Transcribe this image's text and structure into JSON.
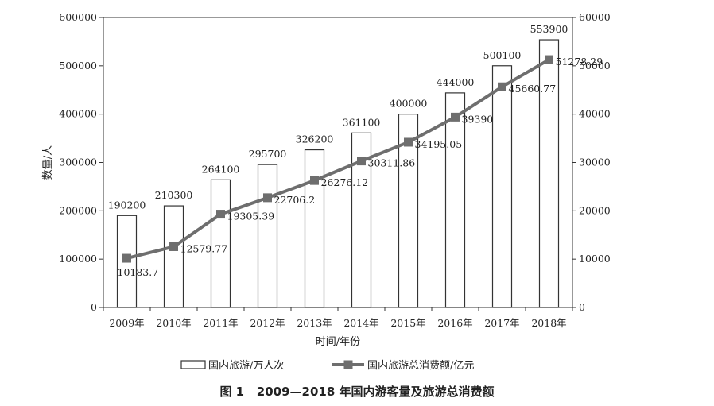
{
  "chart_data": {
    "type": "bar",
    "categories": [
      "2009年",
      "2010年",
      "2011年",
      "2012年",
      "2013年",
      "2014年",
      "2015年",
      "2016年",
      "2017年",
      "2018年"
    ],
    "series": [
      {
        "name": "国内旅游/万人次",
        "type": "bar",
        "axis": "left",
        "values": [
          190200,
          210300,
          264100,
          295700,
          326200,
          361100,
          400000,
          444000,
          500100,
          553900
        ],
        "labels": [
          "190200",
          "210300",
          "264100",
          "295700",
          "326200",
          "361100",
          "400000",
          "444000",
          "500100",
          "553900"
        ]
      },
      {
        "name": "国内旅游总消费额/亿元",
        "type": "line",
        "axis": "right",
        "values": [
          10183.7,
          12579.77,
          19305.39,
          22706.2,
          26276.12,
          30311.86,
          34195.05,
          39390,
          45660.77,
          51278.29
        ],
        "labels": [
          "10183.7",
          "12579.77",
          "19305.39",
          "22706.2",
          "26276.12",
          "30311.86",
          "34195.05",
          "39390",
          "45660.77",
          "51278.29"
        ],
        "color": "#6e6e6e"
      }
    ],
    "xlabel": "时间/年份",
    "ylabel": "数量/人",
    "ylim_left": [
      0,
      600000
    ],
    "ylim_right": [
      0,
      60000
    ],
    "left_ticks": [
      "0",
      "100000",
      "200000",
      "300000",
      "400000",
      "500000",
      "600000"
    ],
    "right_ticks": [
      "0",
      "10000",
      "20000",
      "30000",
      "40000",
      "50000",
      "60000"
    ],
    "grid": false,
    "legend_position": "bottom"
  },
  "caption": {
    "figure_no": "图 1",
    "text": "2009—2018 年国内游客量及旅游总消费额"
  }
}
